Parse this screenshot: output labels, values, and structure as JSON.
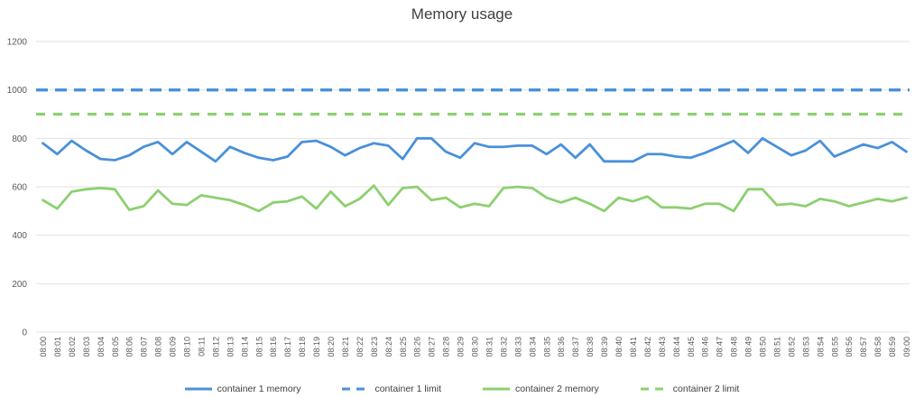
{
  "colors": {
    "container1": "#4a90d9",
    "container2": "#8cd06f",
    "grid": "#e2e2e2",
    "tick_label": "#595959",
    "title_text": "#3f3f3f",
    "legend_text": "#404040",
    "background": "#ffffff"
  },
  "chart_data": {
    "type": "line",
    "title": "Memory usage",
    "xlabel": "",
    "ylabel": "",
    "ylim": [
      0,
      1200
    ],
    "ytick_interval": 200,
    "yticks": [
      0,
      200,
      400,
      600,
      800,
      1000,
      1200
    ],
    "grid": true,
    "legend_position": "bottom",
    "x": [
      "08:00",
      "08:01",
      "08:02",
      "08:03",
      "08:04",
      "08:05",
      "08:06",
      "08:07",
      "08:08",
      "08:09",
      "08:10",
      "08:11",
      "08:12",
      "08:13",
      "08:14",
      "08:15",
      "08:16",
      "08:17",
      "08:18",
      "08:19",
      "08:20",
      "08:21",
      "08:22",
      "08:23",
      "08:24",
      "08:25",
      "08:26",
      "08:27",
      "08:28",
      "08:29",
      "08:30",
      "08:31",
      "08:32",
      "08:33",
      "08:34",
      "08:35",
      "08:36",
      "08:37",
      "08:38",
      "08:39",
      "08:40",
      "08:41",
      "08:42",
      "08:43",
      "08:44",
      "08:45",
      "08:46",
      "08:47",
      "08:48",
      "08:49",
      "08:50",
      "08:51",
      "08:52",
      "08:53",
      "08:54",
      "08:55",
      "08:56",
      "08:57",
      "08:58",
      "08:59",
      "09:00"
    ],
    "series": [
      {
        "name": "container 1 memory",
        "style": "solid",
        "color": "#4a90d9",
        "width": 2.8,
        "values": [
          780,
          735,
          790,
          750,
          715,
          710,
          730,
          765,
          785,
          735,
          785,
          745,
          705,
          765,
          740,
          720,
          710,
          725,
          785,
          790,
          765,
          730,
          760,
          780,
          770,
          715,
          800,
          800,
          745,
          720,
          780,
          765,
          765,
          770,
          770,
          735,
          775,
          720,
          775,
          705,
          705,
          705,
          735,
          735,
          725,
          720,
          740,
          765,
          790,
          740,
          800,
          765,
          730,
          750,
          790,
          725,
          750,
          775,
          760,
          785,
          745
        ]
      },
      {
        "name": "container 1 limit",
        "style": "dashed",
        "color": "#4a90d9",
        "width": 3.4,
        "dash": "13 8",
        "constant": 1000
      },
      {
        "name": "container 2 memory",
        "style": "solid",
        "color": "#8cd06f",
        "width": 2.8,
        "values": [
          545,
          510,
          580,
          590,
          595,
          590,
          505,
          520,
          585,
          530,
          525,
          565,
          555,
          545,
          525,
          500,
          535,
          540,
          560,
          510,
          580,
          520,
          550,
          605,
          525,
          595,
          600,
          545,
          555,
          515,
          530,
          520,
          595,
          600,
          595,
          555,
          535,
          555,
          530,
          500,
          555,
          540,
          560,
          515,
          515,
          510,
          530,
          530,
          500,
          590,
          590,
          525,
          530,
          520,
          550,
          540,
          520,
          535,
          550,
          540,
          555
        ]
      },
      {
        "name": "container 2 limit",
        "style": "dashed",
        "color": "#8cd06f",
        "width": 3.2,
        "dash": "10 9",
        "constant": 900
      }
    ]
  }
}
